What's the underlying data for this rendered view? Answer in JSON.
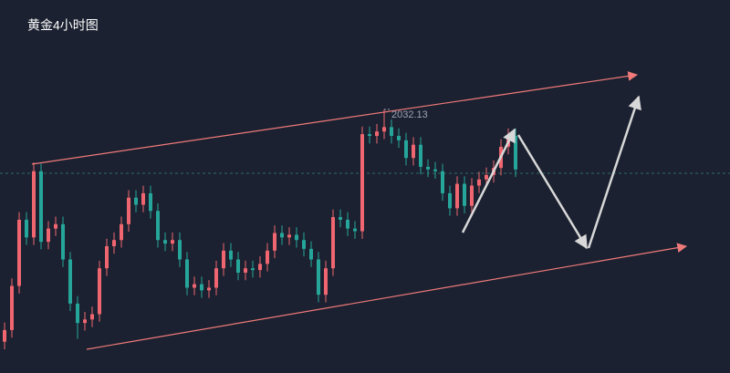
{
  "chart_data": {
    "type": "candlestick",
    "title": "黄金4小时图",
    "annotations": [
      "2032.13"
    ],
    "up_color": "#ef6670",
    "down_color": "#26a69a",
    "series": {
      "open": [
        1940.0,
        1944.63,
        1962.13,
        1988.38,
        1981.38,
        2007.63,
        1979.63,
        1984.88,
        1986.63,
        1972.63,
        1955.13,
        1947.43,
        1948.83,
        1950.93,
        1969.13,
        1977.88,
        1980.33,
        1986.63,
        1997.13,
        1994.33,
        1998.88,
        1991.88,
        1980.33,
        1978.93,
        1980.33,
        1972.63,
        1961.43,
        1962.83,
        1960.38,
        1961.43,
        1969.13,
        1976.13,
        1972.63,
        1967.38,
        1969.13,
        1968.43,
        1970.88,
        1976.13,
        1983.13,
        1981.38,
        1982.43,
        1980.33,
        1976.83,
        1972.63,
        1958.63,
        1969.13,
        1989.43,
        1988.38,
        1984.88,
        1983.83,
        2022.33,
        2021.63,
        2023.38,
        2025.13,
        2021.63,
        2019.88,
        2012.88,
        2018.13,
        2009.38,
        2008.33,
        2007.63,
        1998.88,
        1992.93,
        2002.63,
        1993.88,
        2001.93,
        2004.38,
        2006.13,
        2008.93,
        2017.33,
        2021.63
      ],
      "high": [
        1947.63,
        1965.13,
        1991.38,
        1991.38,
        2011.13,
        2010.63,
        1987.88,
        1989.63,
        1989.63,
        1975.63,
        1958.13,
        1951.83,
        1953.93,
        1972.13,
        1980.88,
        1983.33,
        1989.63,
        2000.13,
        2000.13,
        2001.88,
        2001.88,
        1994.88,
        1983.33,
        1983.33,
        1983.33,
        1975.63,
        1965.83,
        1965.83,
        1964.43,
        1972.13,
        1979.13,
        1979.13,
        1975.63,
        1972.13,
        1972.13,
        1973.88,
        1979.13,
        1986.13,
        1986.13,
        1985.43,
        1985.43,
        1983.33,
        1979.83,
        1975.63,
        1972.13,
        1992.43,
        1992.43,
        1991.38,
        1987.88,
        2025.33,
        2025.33,
        2026.38,
        2032.13,
        2028.13,
        2024.63,
        2022.88,
        2021.13,
        2021.13,
        2012.38,
        2011.33,
        2010.63,
        2001.88,
        2005.63,
        2005.63,
        2004.93,
        2007.38,
        2009.13,
        2011.93,
        2020.33,
        2024.63,
        2024.63
      ],
      "low": [
        1937.0,
        1941.63,
        1959.13,
        1978.38,
        1978.38,
        1976.63,
        1976.63,
        1981.88,
        1969.63,
        1952.13,
        1941.13,
        1944.43,
        1945.83,
        1947.93,
        1966.13,
        1974.88,
        1977.33,
        1983.63,
        1991.33,
        1991.33,
        1988.88,
        1977.33,
        1975.93,
        1975.93,
        1969.63,
        1958.43,
        1958.43,
        1957.38,
        1957.38,
        1958.43,
        1966.13,
        1969.63,
        1964.38,
        1964.38,
        1965.43,
        1965.43,
        1967.88,
        1973.13,
        1978.38,
        1978.38,
        1977.33,
        1973.83,
        1969.63,
        1955.63,
        1955.63,
        1966.13,
        1985.38,
        1981.88,
        1980.83,
        1980.83,
        2018.63,
        2018.63,
        2020.38,
        2018.63,
        2016.88,
        2009.88,
        2009.88,
        2006.38,
        2005.33,
        2004.63,
        1995.88,
        1989.93,
        1989.93,
        1990.88,
        1990.88,
        1998.93,
        2001.38,
        2003.13,
        2005.93,
        2014.33,
        2005.33
      ],
      "close": [
        1944.63,
        1962.13,
        1988.38,
        1981.38,
        2007.63,
        1979.63,
        1984.88,
        1986.63,
        1972.63,
        1955.13,
        1947.43,
        1948.83,
        1950.93,
        1969.13,
        1977.88,
        1980.33,
        1986.63,
        1997.13,
        1994.33,
        1998.88,
        1991.88,
        1980.33,
        1978.93,
        1980.33,
        1972.63,
        1961.43,
        1962.83,
        1960.38,
        1961.43,
        1969.13,
        1976.13,
        1972.63,
        1967.38,
        1969.13,
        1968.43,
        1970.88,
        1976.13,
        1983.13,
        1981.38,
        1982.43,
        1980.33,
        1976.83,
        1972.63,
        1958.63,
        1969.13,
        1989.43,
        1988.38,
        1984.88,
        1983.83,
        2022.33,
        2021.63,
        2023.38,
        2025.13,
        2021.63,
        2019.88,
        2012.88,
        2018.13,
        2009.38,
        2008.33,
        2007.63,
        1998.88,
        1992.93,
        2002.63,
        1993.88,
        2001.93,
        2004.38,
        2006.13,
        2008.93,
        2017.33,
        2021.63,
        2008.33
      ]
    }
  }
}
